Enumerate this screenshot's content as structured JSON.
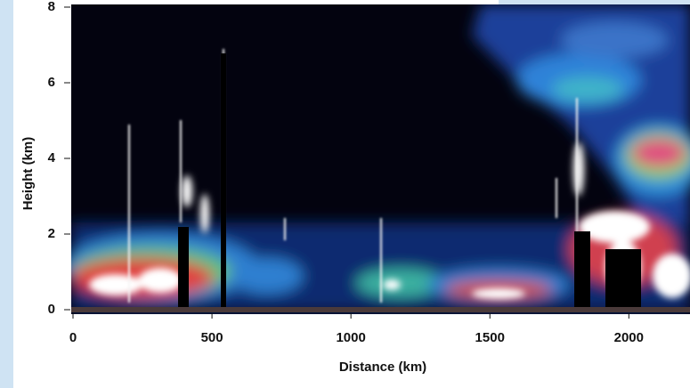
{
  "chart_data": {
    "type": "image",
    "xlabel": "Distance (km)",
    "ylabel": "Height (km)",
    "xlim": [
      0,
      2220
    ],
    "xticks": [
      0,
      500,
      1000,
      1500,
      2000
    ],
    "ylim": [
      0,
      8
    ],
    "yticks": [
      0,
      2,
      4,
      6,
      8
    ]
  }
}
